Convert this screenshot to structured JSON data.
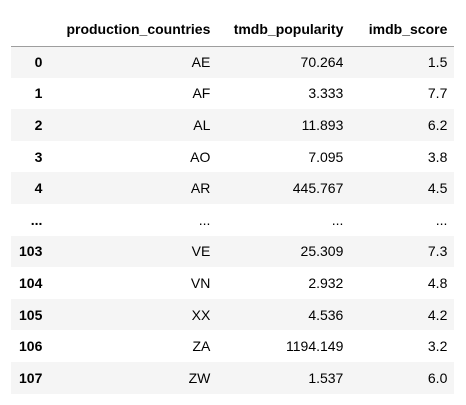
{
  "table": {
    "columns": [
      "",
      "production_countries",
      "tmdb_popularity",
      "imdb_score"
    ],
    "rows": [
      {
        "index": "0",
        "production_countries": "AE",
        "tmdb_popularity": "70.264",
        "imdb_score": "1.5"
      },
      {
        "index": "1",
        "production_countries": "AF",
        "tmdb_popularity": "3.333",
        "imdb_score": "7.7"
      },
      {
        "index": "2",
        "production_countries": "AL",
        "tmdb_popularity": "11.893",
        "imdb_score": "6.2"
      },
      {
        "index": "3",
        "production_countries": "AO",
        "tmdb_popularity": "7.095",
        "imdb_score": "3.8"
      },
      {
        "index": "4",
        "production_countries": "AR",
        "tmdb_popularity": "445.767",
        "imdb_score": "4.5"
      },
      {
        "index": "...",
        "production_countries": "...",
        "tmdb_popularity": "...",
        "imdb_score": "..."
      },
      {
        "index": "103",
        "production_countries": "VE",
        "tmdb_popularity": "25.309",
        "imdb_score": "7.3"
      },
      {
        "index": "104",
        "production_countries": "VN",
        "tmdb_popularity": "2.932",
        "imdb_score": "4.8"
      },
      {
        "index": "105",
        "production_countries": "XX",
        "tmdb_popularity": "4.536",
        "imdb_score": "4.2"
      },
      {
        "index": "106",
        "production_countries": "ZA",
        "tmdb_popularity": "1194.149",
        "imdb_score": "3.2"
      },
      {
        "index": "107",
        "production_countries": "ZW",
        "tmdb_popularity": "1.537",
        "imdb_score": "6.0"
      }
    ]
  },
  "colors": {
    "stripe": "#f5f5f5",
    "header_rule": "#9e9e9e"
  }
}
